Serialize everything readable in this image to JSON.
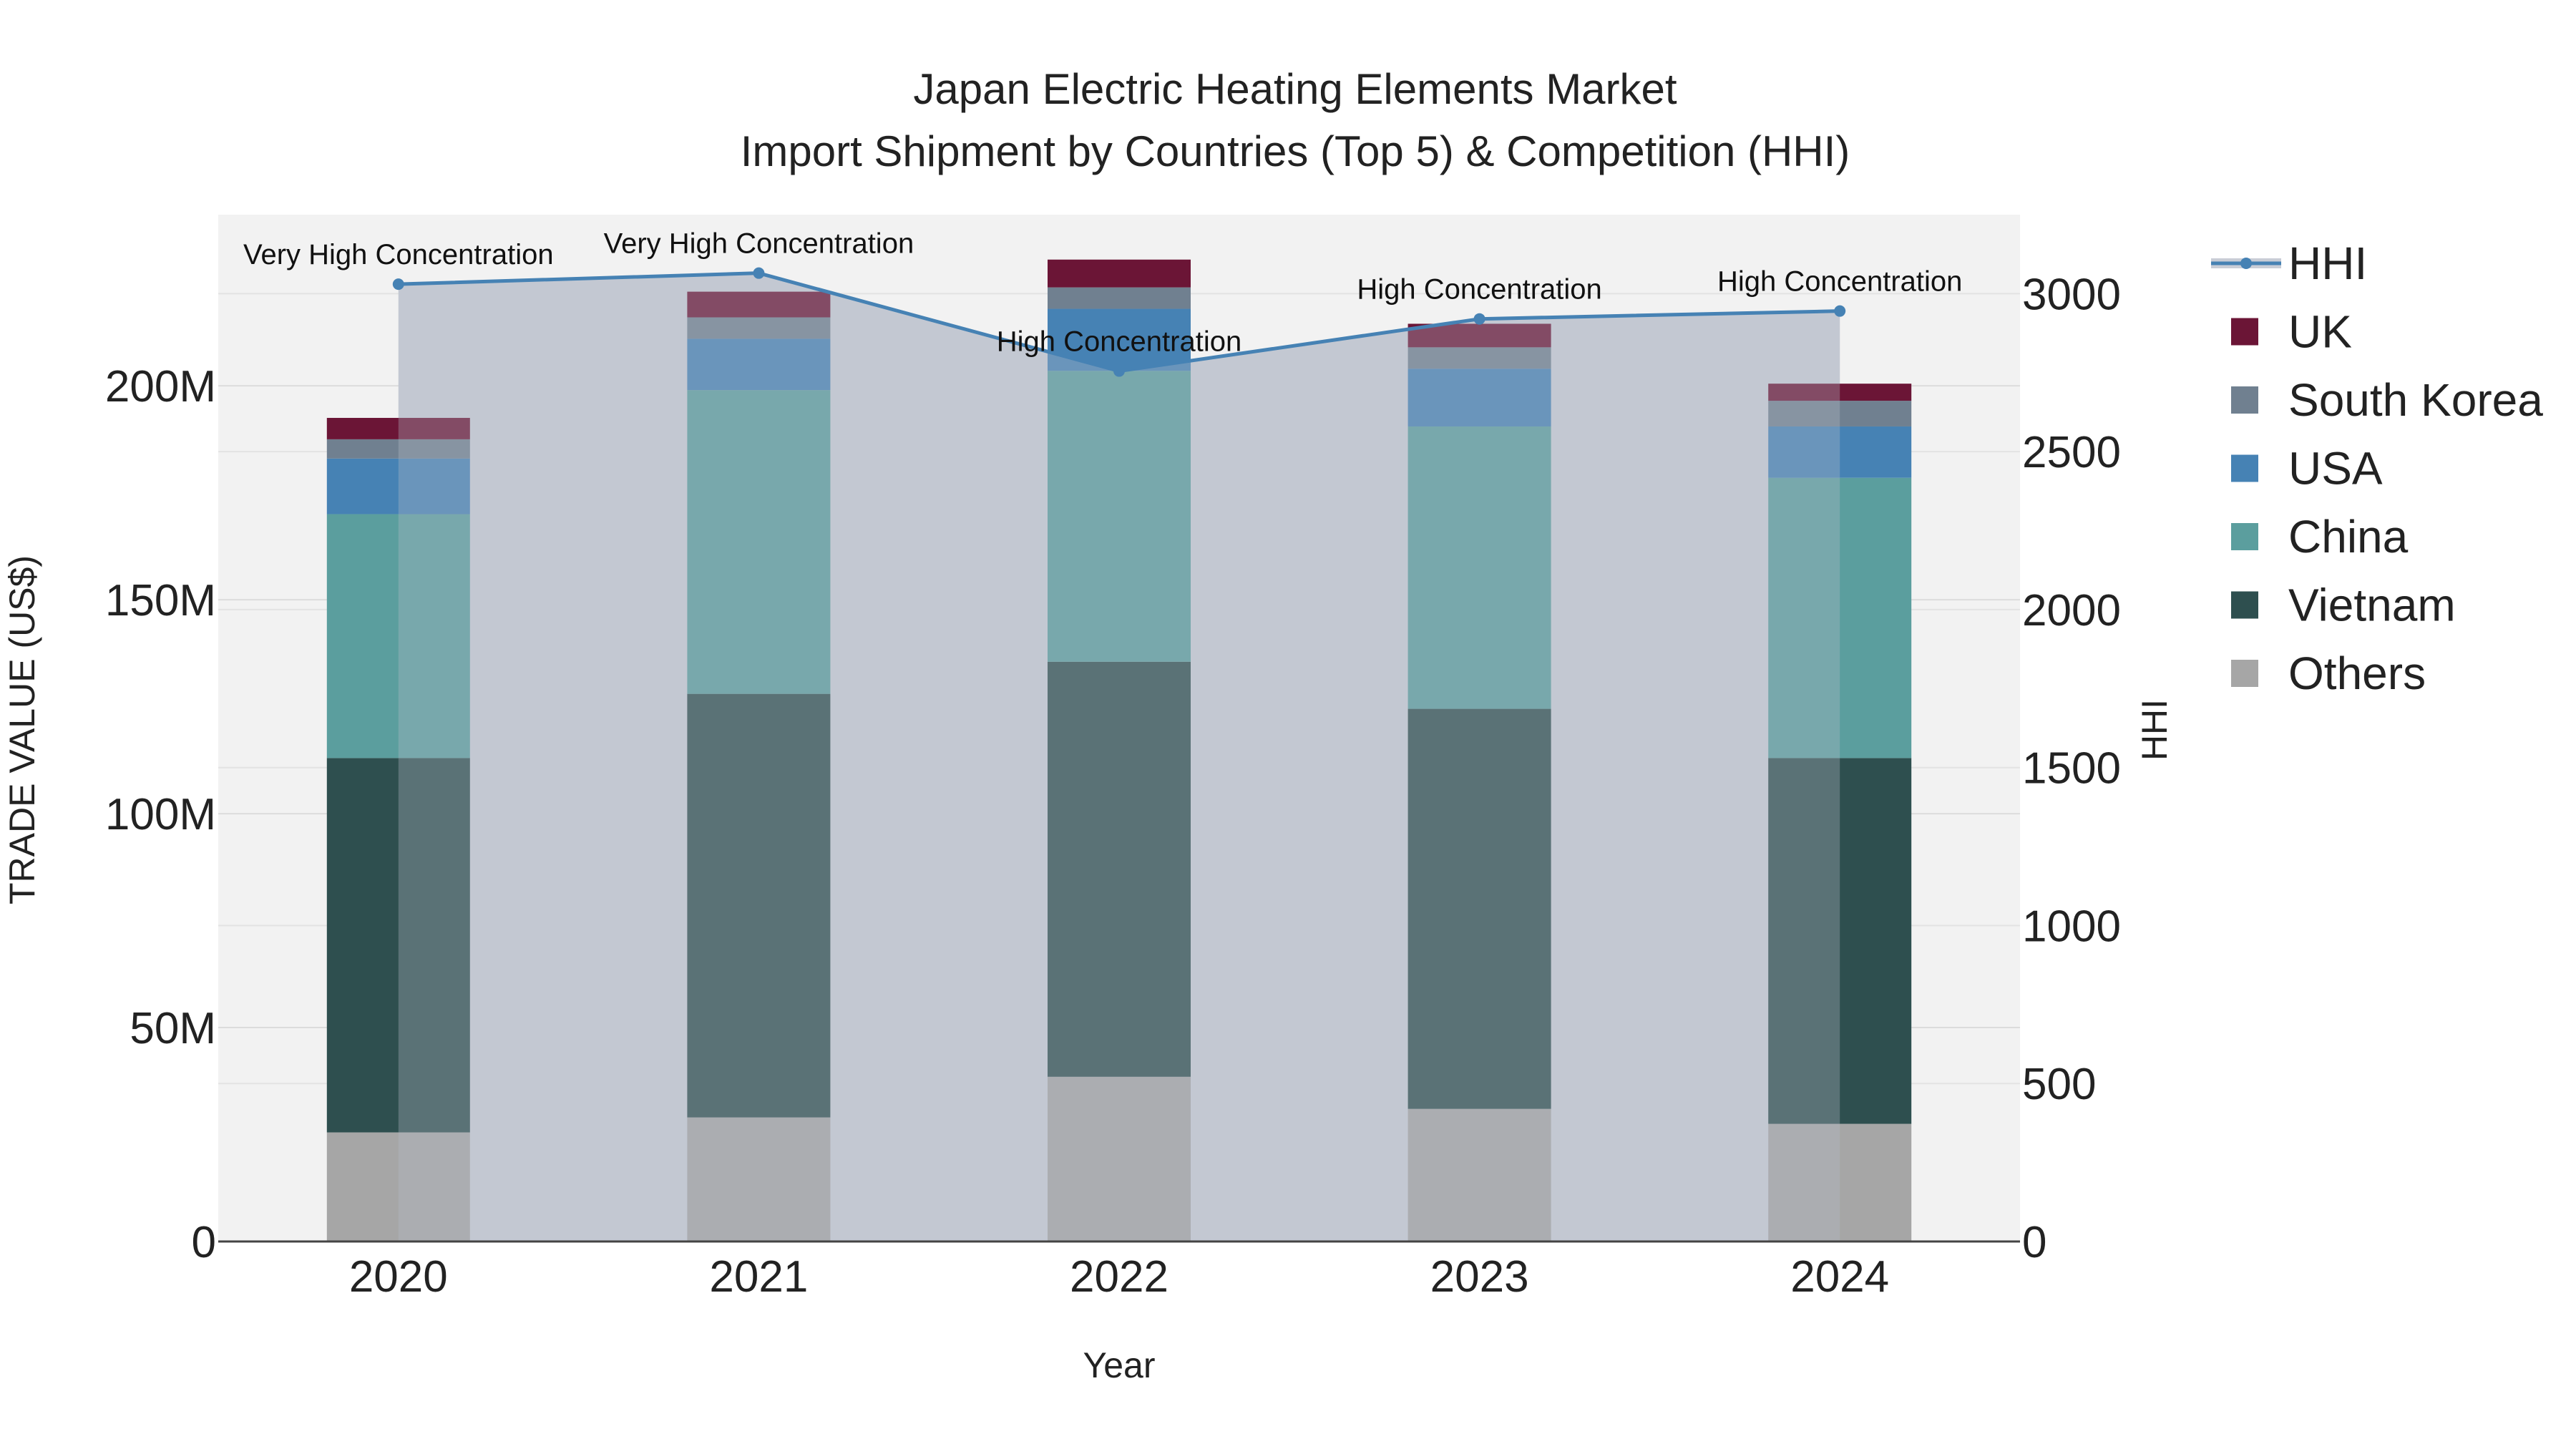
{
  "chart_data": {
    "type": "bar",
    "title": "Japan Electric Heating Elements Market",
    "subtitle": "Import Shipment by Countries (Top 5) & Competition (HHI)",
    "xlabel": "Year",
    "ylabel": "TRADE VALUE (US$)",
    "y2label": "HHI",
    "categories": [
      "2020",
      "2021",
      "2022",
      "2023",
      "2024"
    ],
    "ylim": [
      0,
      240000000
    ],
    "y2lim": [
      0,
      3250
    ],
    "y_ticks": [
      {
        "value": 0,
        "label": "0"
      },
      {
        "value": 50000000,
        "label": "50M"
      },
      {
        "value": 100000000,
        "label": "100M"
      },
      {
        "value": 150000000,
        "label": "150M"
      },
      {
        "value": 200000000,
        "label": "200M"
      }
    ],
    "y2_ticks": [
      {
        "value": 0,
        "label": "0"
      },
      {
        "value": 500,
        "label": "500"
      },
      {
        "value": 1000,
        "label": "1000"
      },
      {
        "value": 1500,
        "label": "1500"
      },
      {
        "value": 2000,
        "label": "2000"
      },
      {
        "value": 2500,
        "label": "2500"
      },
      {
        "value": 3000,
        "label": "3000"
      }
    ],
    "stack_order": [
      "Others",
      "Vietnam",
      "China",
      "USA",
      "South Korea",
      "UK"
    ],
    "series": [
      {
        "name": "Others",
        "color": "#a6a6a6",
        "values": [
          25500000,
          29000000,
          38500000,
          31000000,
          27500000
        ]
      },
      {
        "name": "Vietnam",
        "color": "#2e4f4f",
        "values": [
          87500000,
          99000000,
          97000000,
          93500000,
          85500000
        ]
      },
      {
        "name": "China",
        "color": "#5b9e9e",
        "values": [
          57000000,
          71000000,
          68000000,
          66000000,
          65500000
        ]
      },
      {
        "name": "USA",
        "color": "#4682b4",
        "values": [
          13000000,
          12000000,
          14500000,
          13500000,
          12000000
        ]
      },
      {
        "name": "South Korea",
        "color": "#708090",
        "values": [
          4500000,
          5000000,
          5000000,
          5000000,
          6000000
        ]
      },
      {
        "name": "UK",
        "color": "#6b1536",
        "values": [
          5000000,
          6000000,
          6500000,
          5500000,
          4000000
        ]
      }
    ],
    "hhi": {
      "name": "HHI",
      "color": "#4682b4",
      "values": [
        3030,
        3065,
        2755,
        2920,
        2945
      ],
      "labels": [
        "Very High Concentration",
        "Very High Concentration",
        "High Concentration",
        "High Concentration",
        "High Concentration"
      ]
    },
    "legend": [
      "HHI",
      "UK",
      "South Korea",
      "USA",
      "China",
      "Vietnam",
      "Others"
    ],
    "legend_position": "right",
    "grid": true
  }
}
